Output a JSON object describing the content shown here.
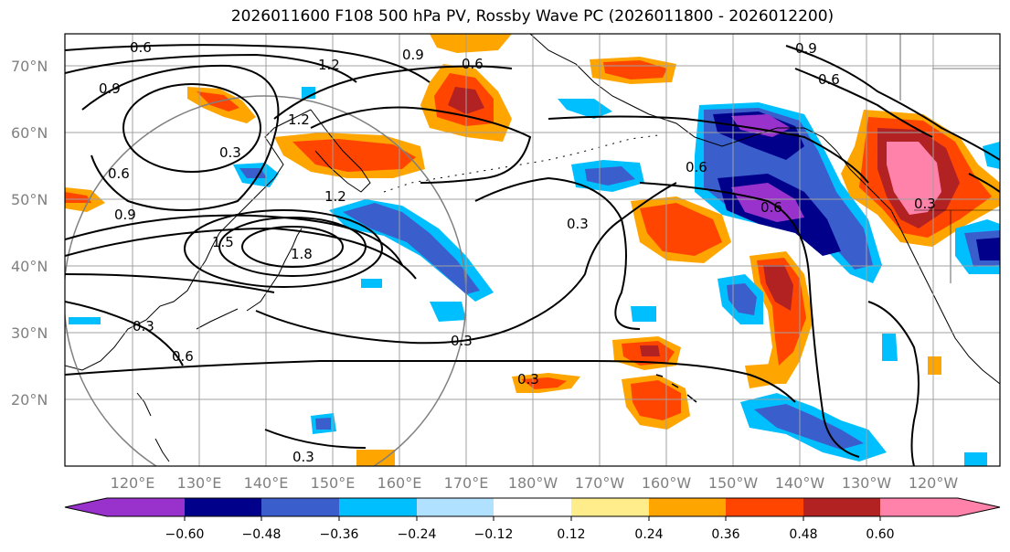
{
  "title": "2026011600 F108 500 hPa PV, Rossby Wave PC (2026011800 - 2026012200)",
  "map": {
    "lat_ticks": [
      "70°N",
      "60°N",
      "50°N",
      "40°N",
      "30°N",
      "20°N"
    ],
    "lon_ticks": [
      "120°E",
      "130°E",
      "140°E",
      "150°E",
      "160°E",
      "170°E",
      "180°W",
      "170°W",
      "160°W",
      "150°W",
      "140°W",
      "130°W",
      "120°W"
    ],
    "contour_labels": [
      "0.6",
      "0.9",
      "1.2",
      "0.9",
      "0.6",
      "0.9",
      "0.6",
      "1.2",
      "0.3",
      "0.6",
      "0.9",
      "1.5",
      "1.8",
      "1.2",
      "0.3",
      "0.6",
      "0.3",
      "0.3",
      "0.3",
      "0.6",
      "0.6",
      "0.3",
      "0.3"
    ]
  },
  "colorbar": {
    "tick_labels": [
      "−0.60",
      "−0.48",
      "−0.36",
      "−0.24",
      "−0.12",
      "0.12",
      "0.24",
      "0.36",
      "0.48",
      "0.60"
    ],
    "colors": {
      "neg_extend": "#9932cc",
      "neg_060": "#00008b",
      "neg_048": "#3a5fcd",
      "neg_036": "#00bfff",
      "neg_024": "#b0e2ff",
      "zero": "#ffffff",
      "pos_012": "#ffec8b",
      "pos_024": "#ffa500",
      "pos_036": "#ff4500",
      "pos_048": "#b22222",
      "pos_extend": "#ff82ab"
    }
  }
}
